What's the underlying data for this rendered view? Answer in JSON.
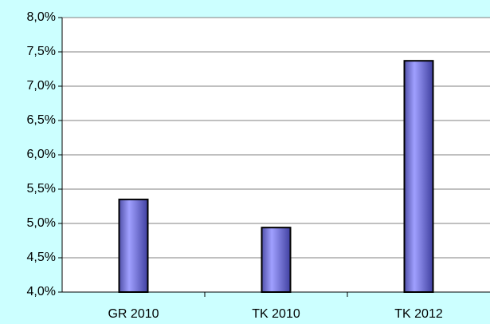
{
  "chart_data": {
    "type": "bar",
    "categories": [
      "GR 2010",
      "TK 2010",
      "TK 2012"
    ],
    "values": [
      5.35,
      4.94,
      7.37
    ],
    "color": "#8080e0",
    "ylim": [
      4.0,
      8.0
    ],
    "yticks": [
      {
        "value": 4.0,
        "label": "4,0%"
      },
      {
        "value": 4.5,
        "label": "4,5%"
      },
      {
        "value": 5.0,
        "label": "5,0%"
      },
      {
        "value": 5.5,
        "label": "5,5%"
      },
      {
        "value": 6.0,
        "label": "6,0%"
      },
      {
        "value": 6.5,
        "label": "6,5%"
      },
      {
        "value": 7.0,
        "label": "7,0%"
      },
      {
        "value": 7.5,
        "label": "7,5%"
      },
      {
        "value": 8.0,
        "label": "8,0%"
      }
    ],
    "grid": true
  }
}
